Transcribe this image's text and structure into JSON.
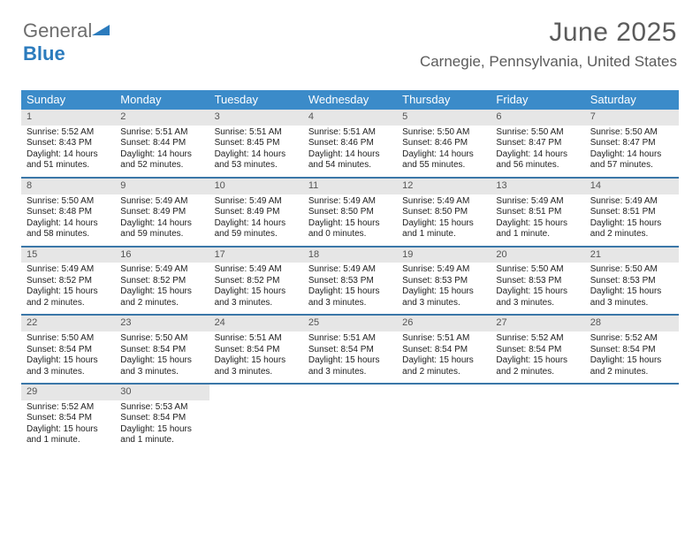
{
  "logo": {
    "text_general": "General",
    "text_blue": "Blue"
  },
  "title": "June 2025",
  "location": "Carnegie, Pennsylvania, United States",
  "colors": {
    "header_bg": "#3b8bc9",
    "header_text": "#ffffff",
    "daynum_bg": "#e6e6e6",
    "week_border": "#3b77a8",
    "title_color": "#5b5b5b",
    "body_text": "#222222",
    "logo_blue": "#2b7bbd",
    "logo_gray": "#6d6d6d"
  },
  "typography": {
    "title_fontsize": 30,
    "location_fontsize": 17,
    "dayhead_fontsize": 13,
    "daynum_fontsize": 11,
    "cell_fontsize": 10
  },
  "day_headers": [
    "Sunday",
    "Monday",
    "Tuesday",
    "Wednesday",
    "Thursday",
    "Friday",
    "Saturday"
  ],
  "weeks": [
    [
      {
        "day": "1",
        "sunrise": "Sunrise: 5:52 AM",
        "sunset": "Sunset: 8:43 PM",
        "dl1": "Daylight: 14 hours",
        "dl2": "and 51 minutes."
      },
      {
        "day": "2",
        "sunrise": "Sunrise: 5:51 AM",
        "sunset": "Sunset: 8:44 PM",
        "dl1": "Daylight: 14 hours",
        "dl2": "and 52 minutes."
      },
      {
        "day": "3",
        "sunrise": "Sunrise: 5:51 AM",
        "sunset": "Sunset: 8:45 PM",
        "dl1": "Daylight: 14 hours",
        "dl2": "and 53 minutes."
      },
      {
        "day": "4",
        "sunrise": "Sunrise: 5:51 AM",
        "sunset": "Sunset: 8:46 PM",
        "dl1": "Daylight: 14 hours",
        "dl2": "and 54 minutes."
      },
      {
        "day": "5",
        "sunrise": "Sunrise: 5:50 AM",
        "sunset": "Sunset: 8:46 PM",
        "dl1": "Daylight: 14 hours",
        "dl2": "and 55 minutes."
      },
      {
        "day": "6",
        "sunrise": "Sunrise: 5:50 AM",
        "sunset": "Sunset: 8:47 PM",
        "dl1": "Daylight: 14 hours",
        "dl2": "and 56 minutes."
      },
      {
        "day": "7",
        "sunrise": "Sunrise: 5:50 AM",
        "sunset": "Sunset: 8:47 PM",
        "dl1": "Daylight: 14 hours",
        "dl2": "and 57 minutes."
      }
    ],
    [
      {
        "day": "8",
        "sunrise": "Sunrise: 5:50 AM",
        "sunset": "Sunset: 8:48 PM",
        "dl1": "Daylight: 14 hours",
        "dl2": "and 58 minutes."
      },
      {
        "day": "9",
        "sunrise": "Sunrise: 5:49 AM",
        "sunset": "Sunset: 8:49 PM",
        "dl1": "Daylight: 14 hours",
        "dl2": "and 59 minutes."
      },
      {
        "day": "10",
        "sunrise": "Sunrise: 5:49 AM",
        "sunset": "Sunset: 8:49 PM",
        "dl1": "Daylight: 14 hours",
        "dl2": "and 59 minutes."
      },
      {
        "day": "11",
        "sunrise": "Sunrise: 5:49 AM",
        "sunset": "Sunset: 8:50 PM",
        "dl1": "Daylight: 15 hours",
        "dl2": "and 0 minutes."
      },
      {
        "day": "12",
        "sunrise": "Sunrise: 5:49 AM",
        "sunset": "Sunset: 8:50 PM",
        "dl1": "Daylight: 15 hours",
        "dl2": "and 1 minute."
      },
      {
        "day": "13",
        "sunrise": "Sunrise: 5:49 AM",
        "sunset": "Sunset: 8:51 PM",
        "dl1": "Daylight: 15 hours",
        "dl2": "and 1 minute."
      },
      {
        "day": "14",
        "sunrise": "Sunrise: 5:49 AM",
        "sunset": "Sunset: 8:51 PM",
        "dl1": "Daylight: 15 hours",
        "dl2": "and 2 minutes."
      }
    ],
    [
      {
        "day": "15",
        "sunrise": "Sunrise: 5:49 AM",
        "sunset": "Sunset: 8:52 PM",
        "dl1": "Daylight: 15 hours",
        "dl2": "and 2 minutes."
      },
      {
        "day": "16",
        "sunrise": "Sunrise: 5:49 AM",
        "sunset": "Sunset: 8:52 PM",
        "dl1": "Daylight: 15 hours",
        "dl2": "and 2 minutes."
      },
      {
        "day": "17",
        "sunrise": "Sunrise: 5:49 AM",
        "sunset": "Sunset: 8:52 PM",
        "dl1": "Daylight: 15 hours",
        "dl2": "and 3 minutes."
      },
      {
        "day": "18",
        "sunrise": "Sunrise: 5:49 AM",
        "sunset": "Sunset: 8:53 PM",
        "dl1": "Daylight: 15 hours",
        "dl2": "and 3 minutes."
      },
      {
        "day": "19",
        "sunrise": "Sunrise: 5:49 AM",
        "sunset": "Sunset: 8:53 PM",
        "dl1": "Daylight: 15 hours",
        "dl2": "and 3 minutes."
      },
      {
        "day": "20",
        "sunrise": "Sunrise: 5:50 AM",
        "sunset": "Sunset: 8:53 PM",
        "dl1": "Daylight: 15 hours",
        "dl2": "and 3 minutes."
      },
      {
        "day": "21",
        "sunrise": "Sunrise: 5:50 AM",
        "sunset": "Sunset: 8:53 PM",
        "dl1": "Daylight: 15 hours",
        "dl2": "and 3 minutes."
      }
    ],
    [
      {
        "day": "22",
        "sunrise": "Sunrise: 5:50 AM",
        "sunset": "Sunset: 8:54 PM",
        "dl1": "Daylight: 15 hours",
        "dl2": "and 3 minutes."
      },
      {
        "day": "23",
        "sunrise": "Sunrise: 5:50 AM",
        "sunset": "Sunset: 8:54 PM",
        "dl1": "Daylight: 15 hours",
        "dl2": "and 3 minutes."
      },
      {
        "day": "24",
        "sunrise": "Sunrise: 5:51 AM",
        "sunset": "Sunset: 8:54 PM",
        "dl1": "Daylight: 15 hours",
        "dl2": "and 3 minutes."
      },
      {
        "day": "25",
        "sunrise": "Sunrise: 5:51 AM",
        "sunset": "Sunset: 8:54 PM",
        "dl1": "Daylight: 15 hours",
        "dl2": "and 3 minutes."
      },
      {
        "day": "26",
        "sunrise": "Sunrise: 5:51 AM",
        "sunset": "Sunset: 8:54 PM",
        "dl1": "Daylight: 15 hours",
        "dl2": "and 2 minutes."
      },
      {
        "day": "27",
        "sunrise": "Sunrise: 5:52 AM",
        "sunset": "Sunset: 8:54 PM",
        "dl1": "Daylight: 15 hours",
        "dl2": "and 2 minutes."
      },
      {
        "day": "28",
        "sunrise": "Sunrise: 5:52 AM",
        "sunset": "Sunset: 8:54 PM",
        "dl1": "Daylight: 15 hours",
        "dl2": "and 2 minutes."
      }
    ],
    [
      {
        "day": "29",
        "sunrise": "Sunrise: 5:52 AM",
        "sunset": "Sunset: 8:54 PM",
        "dl1": "Daylight: 15 hours",
        "dl2": "and 1 minute."
      },
      {
        "day": "30",
        "sunrise": "Sunrise: 5:53 AM",
        "sunset": "Sunset: 8:54 PM",
        "dl1": "Daylight: 15 hours",
        "dl2": "and 1 minute."
      },
      null,
      null,
      null,
      null,
      null
    ]
  ]
}
